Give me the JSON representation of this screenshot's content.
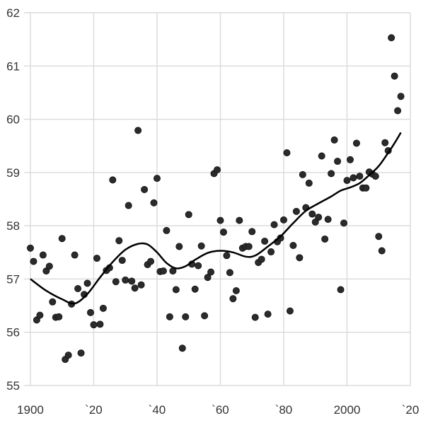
{
  "chart_data": {
    "type": "scatter",
    "title": "",
    "xlabel": "",
    "ylabel": "",
    "xlim": [
      1898,
      2020
    ],
    "ylim": [
      55,
      62
    ],
    "grid": true,
    "x_ticks": [
      {
        "value": 1900,
        "label": "1900"
      },
      {
        "value": 1920,
        "label": "`20"
      },
      {
        "value": 1940,
        "label": "`40"
      },
      {
        "value": 1960,
        "label": "`60"
      },
      {
        "value": 1980,
        "label": "`80"
      },
      {
        "value": 2000,
        "label": "2000"
      },
      {
        "value": 2020,
        "label": "`20"
      }
    ],
    "y_ticks": [
      {
        "value": 55,
        "label": "55"
      },
      {
        "value": 56,
        "label": "56"
      },
      {
        "value": 57,
        "label": "57"
      },
      {
        "value": 58,
        "label": "58"
      },
      {
        "value": 59,
        "label": "59"
      },
      {
        "value": 60,
        "label": "60"
      },
      {
        "value": 61,
        "label": "61"
      },
      {
        "value": 62,
        "label": "62"
      }
    ],
    "colors": {
      "points": "#2b2b2b",
      "trend": "#000000",
      "grid": "#dcdcdc"
    },
    "points": [
      [
        1900,
        57.58
      ],
      [
        1901,
        57.33
      ],
      [
        1902,
        56.23
      ],
      [
        1903,
        56.32
      ],
      [
        1904,
        57.45
      ],
      [
        1905,
        57.15
      ],
      [
        1906,
        57.24
      ],
      [
        1907,
        56.57
      ],
      [
        1908,
        56.28
      ],
      [
        1909,
        56.29
      ],
      [
        1910,
        57.76
      ],
      [
        1911,
        55.49
      ],
      [
        1912,
        55.57
      ],
      [
        1913,
        56.53
      ],
      [
        1914,
        57.45
      ],
      [
        1915,
        56.82
      ],
      [
        1916,
        55.61
      ],
      [
        1917,
        56.71
      ],
      [
        1918,
        56.92
      ],
      [
        1919,
        56.37
      ],
      [
        1920,
        56.14
      ],
      [
        1921,
        57.39
      ],
      [
        1922,
        56.15
      ],
      [
        1923,
        56.45
      ],
      [
        1924,
        57.16
      ],
      [
        1925,
        57.21
      ],
      [
        1926,
        58.86
      ],
      [
        1927,
        56.95
      ],
      [
        1928,
        57.72
      ],
      [
        1929,
        57.35
      ],
      [
        1930,
        56.98
      ],
      [
        1931,
        58.38
      ],
      [
        1932,
        56.96
      ],
      [
        1933,
        56.83
      ],
      [
        1934,
        59.79
      ],
      [
        1935,
        56.89
      ],
      [
        1936,
        58.68
      ],
      [
        1937,
        57.27
      ],
      [
        1938,
        57.33
      ],
      [
        1939,
        58.43
      ],
      [
        1940,
        58.89
      ],
      [
        1941,
        57.14
      ],
      [
        1942,
        57.15
      ],
      [
        1943,
        57.91
      ],
      [
        1944,
        56.29
      ],
      [
        1945,
        57.15
      ],
      [
        1946,
        56.8
      ],
      [
        1947,
        57.61
      ],
      [
        1948,
        55.7
      ],
      [
        1949,
        56.29
      ],
      [
        1950,
        58.21
      ],
      [
        1951,
        57.28
      ],
      [
        1952,
        56.81
      ],
      [
        1953,
        57.25
      ],
      [
        1954,
        57.62
      ],
      [
        1955,
        56.31
      ],
      [
        1956,
        57.03
      ],
      [
        1957,
        57.13
      ],
      [
        1958,
        58.98
      ],
      [
        1959,
        59.05
      ],
      [
        1960,
        58.1
      ],
      [
        1961,
        57.88
      ],
      [
        1962,
        57.44
      ],
      [
        1963,
        57.12
      ],
      [
        1964,
        56.63
      ],
      [
        1965,
        56.78
      ],
      [
        1966,
        58.1
      ],
      [
        1967,
        57.58
      ],
      [
        1968,
        57.61
      ],
      [
        1969,
        57.61
      ],
      [
        1970,
        57.89
      ],
      [
        1971,
        56.28
      ],
      [
        1972,
        57.31
      ],
      [
        1973,
        57.37
      ],
      [
        1974,
        57.71
      ],
      [
        1975,
        56.34
      ],
      [
        1976,
        57.51
      ],
      [
        1977,
        58.02
      ],
      [
        1978,
        57.7
      ],
      [
        1979,
        57.77
      ],
      [
        1980,
        58.11
      ],
      [
        1981,
        59.37
      ],
      [
        1982,
        56.4
      ],
      [
        1983,
        57.63
      ],
      [
        1984,
        58.27
      ],
      [
        1985,
        57.4
      ],
      [
        1986,
        58.96
      ],
      [
        1987,
        58.34
      ],
      [
        1988,
        58.8
      ],
      [
        1989,
        58.22
      ],
      [
        1990,
        58.07
      ],
      [
        1991,
        58.16
      ],
      [
        1992,
        59.31
      ],
      [
        1993,
        57.75
      ],
      [
        1994,
        58.12
      ],
      [
        1995,
        58.98
      ],
      [
        1996,
        59.61
      ],
      [
        1997,
        59.21
      ],
      [
        1998,
        56.8
      ],
      [
        1999,
        58.05
      ],
      [
        2000,
        58.85
      ],
      [
        2001,
        59.24
      ],
      [
        2002,
        58.9
      ],
      [
        2003,
        59.55
      ],
      [
        2004,
        58.93
      ],
      [
        2005,
        58.71
      ],
      [
        2006,
        58.71
      ],
      [
        2007,
        59.01
      ],
      [
        2008,
        58.97
      ],
      [
        2009,
        58.93
      ],
      [
        2010,
        57.8
      ],
      [
        2011,
        57.53
      ],
      [
        2012,
        59.56
      ],
      [
        2013,
        59.41
      ],
      [
        2014,
        61.53
      ],
      [
        2015,
        60.81
      ],
      [
        2016,
        60.16
      ],
      [
        2017,
        60.43
      ]
    ],
    "trend": [
      [
        1900,
        57.0
      ],
      [
        1905,
        56.78
      ],
      [
        1910,
        56.62
      ],
      [
        1914,
        56.54
      ],
      [
        1918,
        56.72
      ],
      [
        1922,
        57.03
      ],
      [
        1926,
        57.32
      ],
      [
        1930,
        57.55
      ],
      [
        1934,
        57.66
      ],
      [
        1937,
        57.65
      ],
      [
        1940,
        57.5
      ],
      [
        1943,
        57.3
      ],
      [
        1946,
        57.2
      ],
      [
        1949,
        57.24
      ],
      [
        1952,
        57.36
      ],
      [
        1956,
        57.49
      ],
      [
        1960,
        57.53
      ],
      [
        1964,
        57.5
      ],
      [
        1968,
        57.42
      ],
      [
        1971,
        57.44
      ],
      [
        1975,
        57.61
      ],
      [
        1979,
        57.8
      ],
      [
        1983,
        58.05
      ],
      [
        1987,
        58.28
      ],
      [
        1991,
        58.42
      ],
      [
        1995,
        58.55
      ],
      [
        1998,
        58.66
      ],
      [
        2001,
        58.72
      ],
      [
        2004,
        58.8
      ],
      [
        2007,
        58.95
      ],
      [
        2010,
        59.12
      ],
      [
        2013,
        59.37
      ],
      [
        2015,
        59.55
      ],
      [
        2017,
        59.75
      ]
    ]
  }
}
